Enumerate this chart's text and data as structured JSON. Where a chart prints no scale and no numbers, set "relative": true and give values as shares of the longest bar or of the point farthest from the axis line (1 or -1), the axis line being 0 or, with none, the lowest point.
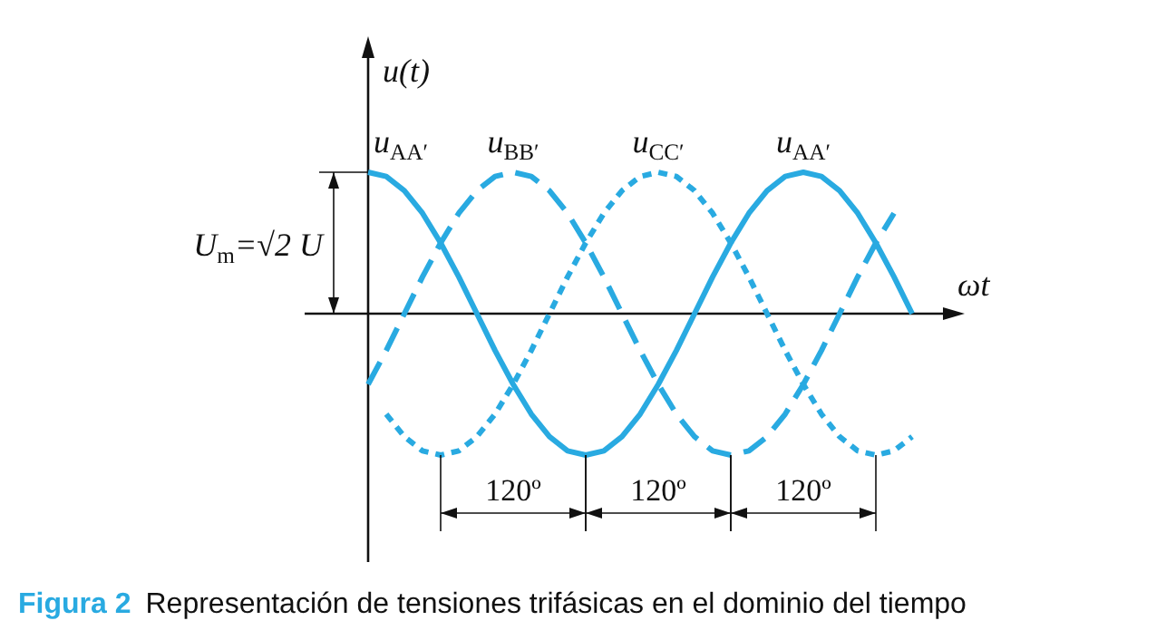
{
  "chart_data": {
    "type": "line",
    "relative": true,
    "title": "Figura 2",
    "subtitle": "Representación de tensiones trifásicas en el dominio del tiempo",
    "xlabel": "ωt",
    "ylabel": "u(t)",
    "categories": [
      null,
      null,
      null,
      null,
      null,
      null,
      null,
      null,
      null,
      null,
      null,
      null,
      null,
      null,
      null,
      null,
      null,
      null,
      null,
      null,
      null,
      null,
      null,
      null,
      null,
      null,
      null,
      null,
      null,
      null,
      null
    ],
    "series": [
      {
        "name": "u$_{AA′}$",
        "color": "#29aae1",
        "values": [
          1,
          0.97,
          0.87,
          0.71,
          0.5,
          0.26,
          0,
          -0.26,
          -0.5,
          -0.71,
          -0.87,
          -0.97,
          -1,
          -0.97,
          -0.87,
          -0.71,
          -0.5,
          -0.26,
          0,
          0.26,
          0.5,
          0.71,
          0.87,
          0.97,
          1,
          0.97,
          0.87,
          0.71,
          0.5,
          0.26,
          0
        ]
      },
      {
        "name": "u$_{BB′}$",
        "color": "#29aae1",
        "line_style": "dashed",
        "values": [
          -0.5,
          -0.26,
          0,
          0.26,
          0.5,
          0.71,
          0.87,
          0.97,
          1,
          0.97,
          0.87,
          0.71,
          0.5,
          0.26,
          0,
          -0.26,
          -0.5,
          -0.71,
          -0.87,
          -0.97,
          -1,
          -0.97,
          -0.87,
          -0.71,
          -0.5,
          -0.26,
          0,
          0.26,
          0.5,
          0.71,
          null
        ]
      },
      {
        "name": "u$_{CC′}$",
        "color": "#29aae1",
        "line_style": "dotted",
        "values": [
          null,
          -0.71,
          -0.87,
          -0.97,
          -1,
          -0.97,
          -0.87,
          -0.71,
          -0.5,
          -0.26,
          0,
          0.26,
          0.5,
          0.71,
          0.87,
          0.97,
          1,
          0.97,
          0.87,
          0.71,
          0.5,
          0.26,
          0,
          -0.26,
          -0.5,
          -0.71,
          -0.87,
          -0.97,
          -1,
          -0.97,
          -0.87
        ]
      }
    ],
    "annotations": [
      "u$_{AA′}$",
      "U$_{m}$=√2 U",
      "120º",
      "120º",
      "120º"
    ],
    "line_style": "solid"
  }
}
